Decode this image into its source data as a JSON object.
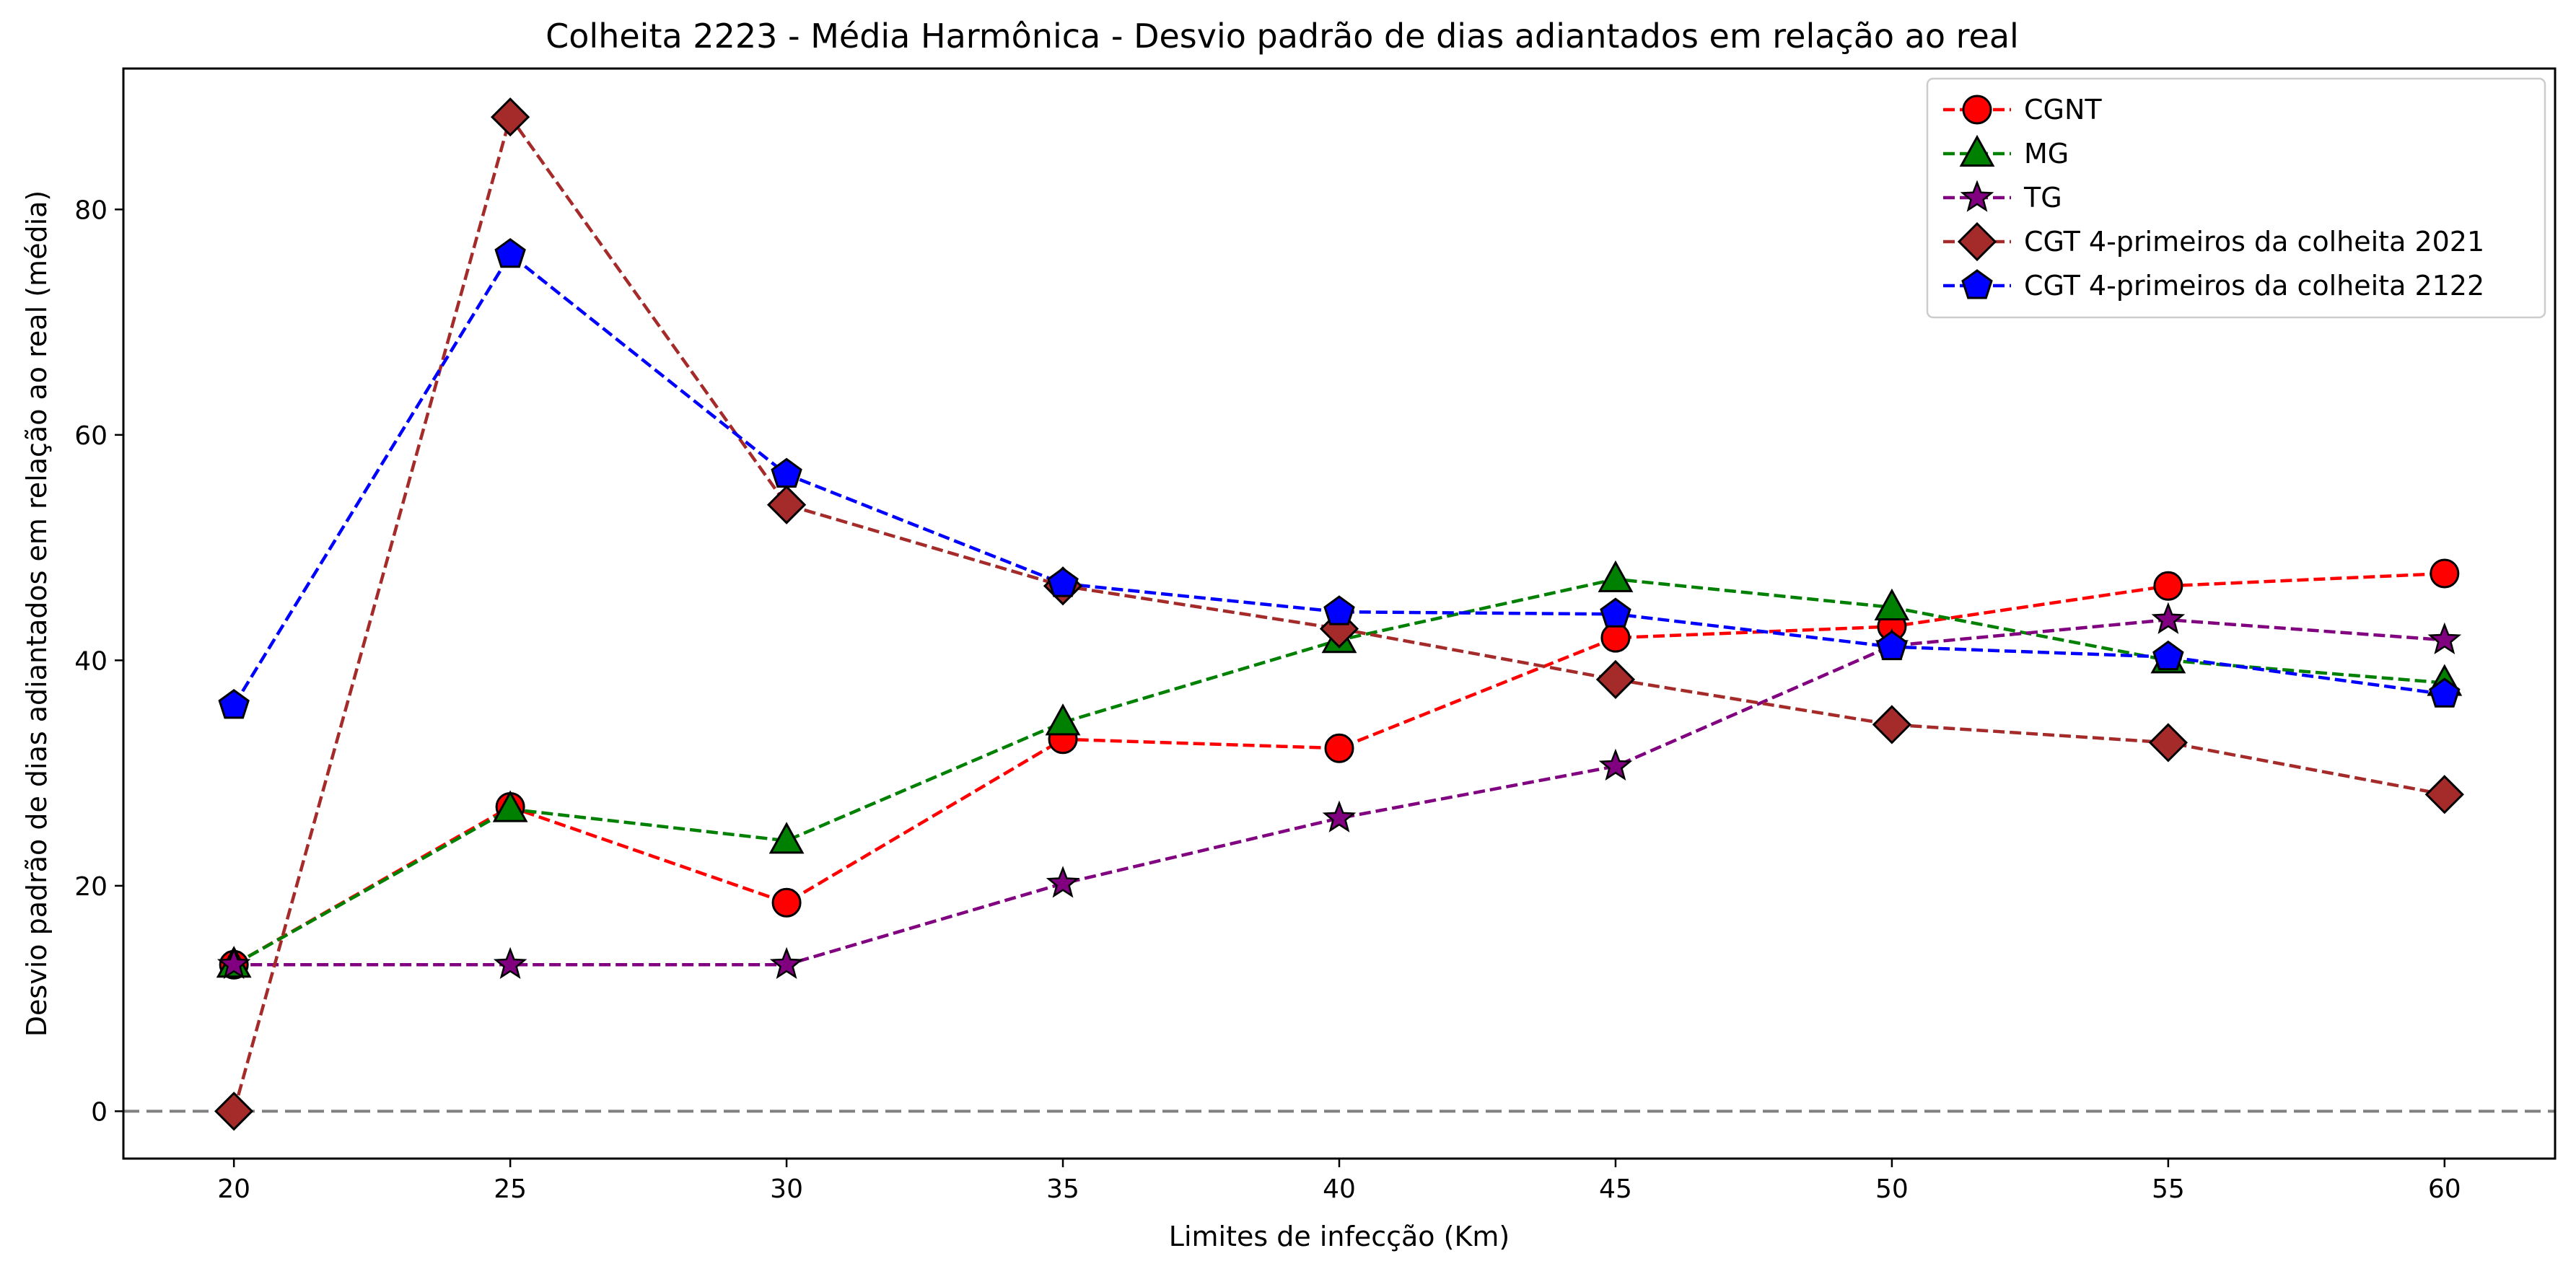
{
  "chart_data": {
    "type": "line",
    "title": "Colheita 2223 - Média Harmônica - Desvio padrão de dias adiantados em relação ao real",
    "xlabel": "Limites de infecção (Km)",
    "ylabel": "Desvio padrão de dias adiantados em relação ao real (média)",
    "x": [
      20,
      25,
      30,
      35,
      40,
      45,
      50,
      55,
      60
    ],
    "xticks": [
      20,
      25,
      30,
      35,
      40,
      45,
      50,
      55,
      60
    ],
    "yticks": [
      0,
      20,
      40,
      60,
      80
    ],
    "xlim": [
      18,
      62
    ],
    "ylim": [
      -4.2,
      92.5
    ],
    "grid": false,
    "legend_position": "top-right",
    "reference_line": {
      "y": 0,
      "color": "#808080",
      "style": "dashed"
    },
    "series": [
      {
        "name": "CGNT",
        "color": "#ff0000",
        "marker": "circle",
        "values": [
          13.0,
          27.0,
          18.5,
          33.0,
          32.2,
          42.0,
          43.0,
          46.6,
          47.7
        ]
      },
      {
        "name": "MG",
        "color": "#008000",
        "marker": "triangle",
        "values": [
          13.0,
          26.8,
          24.0,
          34.5,
          41.8,
          47.2,
          44.7,
          40.0,
          38.0
        ]
      },
      {
        "name": "TG",
        "color": "#800080",
        "marker": "star",
        "values": [
          13.0,
          13.0,
          13.0,
          20.2,
          26.0,
          30.6,
          41.3,
          43.6,
          41.8
        ]
      },
      {
        "name": "CGT 4-primeiros da colheita 2021",
        "color": "#a52a2a",
        "marker": "diamond",
        "values": [
          0.0,
          88.2,
          53.8,
          46.6,
          42.8,
          38.3,
          34.3,
          32.7,
          28.1
        ]
      },
      {
        "name": "CGT 4-primeiros da colheita 2122",
        "color": "#0000ff",
        "marker": "pentagon",
        "values": [
          36.0,
          76.0,
          56.5,
          46.8,
          44.3,
          44.1,
          41.2,
          40.3,
          37.0
        ]
      }
    ]
  }
}
